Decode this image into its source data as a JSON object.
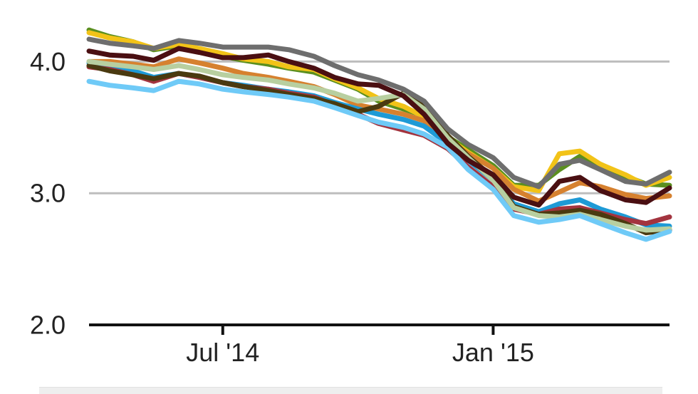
{
  "chart_data": {
    "type": "line",
    "title": "",
    "xlabel": "",
    "ylabel": "",
    "ylim": [
      2.0,
      4.3
    ],
    "y_ticks": [
      {
        "value": 2.0,
        "label": "2.0"
      },
      {
        "value": 3.0,
        "label": "3.0"
      },
      {
        "value": 4.0,
        "label": "4.0"
      }
    ],
    "x_ticks": [
      {
        "value": "2014-07",
        "label": "Jul '14"
      },
      {
        "value": "2015-01",
        "label": "Jan '15"
      }
    ],
    "grid": true,
    "x": [
      "2014-04-01",
      "2014-04-15",
      "2014-05-01",
      "2014-05-15",
      "2014-06-01",
      "2014-06-15",
      "2014-07-01",
      "2014-07-15",
      "2014-08-01",
      "2014-08-15",
      "2014-09-01",
      "2014-09-15",
      "2014-10-01",
      "2014-10-15",
      "2014-11-01",
      "2014-11-15",
      "2014-12-01",
      "2014-12-15",
      "2015-01-01",
      "2015-01-15",
      "2015-02-01",
      "2015-02-15",
      "2015-03-01",
      "2015-03-15",
      "2015-04-01",
      "2015-04-15",
      "2015-05-01"
    ],
    "series": [
      {
        "color": "#5b8f1f",
        "values": [
          4.24,
          4.19,
          4.15,
          4.09,
          4.12,
          4.09,
          4.04,
          4.01,
          3.98,
          3.95,
          3.92,
          3.86,
          3.79,
          3.7,
          3.64,
          3.59,
          3.43,
          3.33,
          3.21,
          3.06,
          3.06,
          3.18,
          3.28,
          3.22,
          3.13,
          3.07,
          3.06
        ]
      },
      {
        "color": "#f2c318",
        "values": [
          4.22,
          4.18,
          4.15,
          4.1,
          4.13,
          4.1,
          4.06,
          4.02,
          4.0,
          3.96,
          3.94,
          3.87,
          3.8,
          3.72,
          3.66,
          3.58,
          3.42,
          3.31,
          3.19,
          3.05,
          3.02,
          3.3,
          3.32,
          3.22,
          3.14,
          3.06,
          3.12
        ]
      },
      {
        "color": "#d6812f",
        "values": [
          4.0,
          4.0,
          3.98,
          3.96,
          4.02,
          3.99,
          3.95,
          3.91,
          3.88,
          3.85,
          3.81,
          3.75,
          3.67,
          3.64,
          3.6,
          3.55,
          3.4,
          3.3,
          3.19,
          3.03,
          2.94,
          3.01,
          3.08,
          3.05,
          2.99,
          2.96,
          2.98
        ]
      },
      {
        "color": "#1e9ad6",
        "values": [
          3.99,
          3.97,
          3.93,
          3.88,
          3.91,
          3.88,
          3.84,
          3.82,
          3.79,
          3.77,
          3.74,
          3.69,
          3.64,
          3.6,
          3.56,
          3.51,
          3.38,
          3.25,
          3.1,
          2.92,
          2.86,
          2.92,
          2.95,
          2.88,
          2.82,
          2.76,
          2.75
        ]
      },
      {
        "color": "#a3343f",
        "values": [
          3.96,
          3.94,
          3.9,
          3.85,
          3.91,
          3.88,
          3.84,
          3.81,
          3.79,
          3.76,
          3.73,
          3.67,
          3.6,
          3.53,
          3.48,
          3.44,
          3.34,
          3.2,
          3.05,
          2.88,
          2.84,
          2.88,
          2.89,
          2.85,
          2.8,
          2.77,
          2.82
        ]
      },
      {
        "color": "#4a3a10",
        "values": [
          3.97,
          3.93,
          3.9,
          3.87,
          3.91,
          3.89,
          3.84,
          3.81,
          3.78,
          3.75,
          3.72,
          3.68,
          3.62,
          3.66,
          3.76,
          3.67,
          3.44,
          3.28,
          3.12,
          2.9,
          2.84,
          2.85,
          2.87,
          2.84,
          2.77,
          2.7,
          2.72
        ]
      },
      {
        "color": "#b8cfa0",
        "values": [
          4.0,
          3.98,
          3.96,
          3.94,
          3.97,
          3.94,
          3.9,
          3.88,
          3.86,
          3.83,
          3.8,
          3.76,
          3.7,
          3.72,
          3.75,
          3.64,
          3.42,
          3.27,
          3.1,
          2.89,
          2.83,
          2.82,
          2.84,
          2.8,
          2.75,
          2.72,
          2.73
        ]
      },
      {
        "color": "#6fcaf7",
        "values": [
          3.85,
          3.82,
          3.8,
          3.78,
          3.85,
          3.83,
          3.79,
          3.77,
          3.75,
          3.73,
          3.7,
          3.65,
          3.59,
          3.54,
          3.5,
          3.45,
          3.35,
          3.18,
          3.03,
          2.83,
          2.78,
          2.8,
          2.83,
          2.77,
          2.7,
          2.65,
          2.71
        ]
      },
      {
        "color": "#4a0f12",
        "values": [
          4.08,
          4.05,
          4.04,
          4.01,
          4.1,
          4.07,
          4.03,
          4.03,
          4.05,
          4.0,
          3.95,
          3.88,
          3.83,
          3.82,
          3.74,
          3.6,
          3.38,
          3.25,
          3.14,
          2.97,
          2.91,
          3.09,
          3.12,
          3.02,
          2.95,
          2.93,
          3.04
        ]
      },
      {
        "color": "#6e6e6e",
        "values": [
          4.17,
          4.14,
          4.12,
          4.1,
          4.16,
          4.14,
          4.11,
          4.11,
          4.11,
          4.09,
          4.04,
          3.97,
          3.9,
          3.86,
          3.79,
          3.7,
          3.49,
          3.37,
          3.27,
          3.12,
          3.05,
          3.22,
          3.25,
          3.18,
          3.09,
          3.07,
          3.16
        ]
      }
    ]
  },
  "colors": {
    "gridline": "#bdbdbd",
    "axis": "#111111",
    "tick_text": "#222222",
    "footer_bar": "#eeeeee"
  }
}
